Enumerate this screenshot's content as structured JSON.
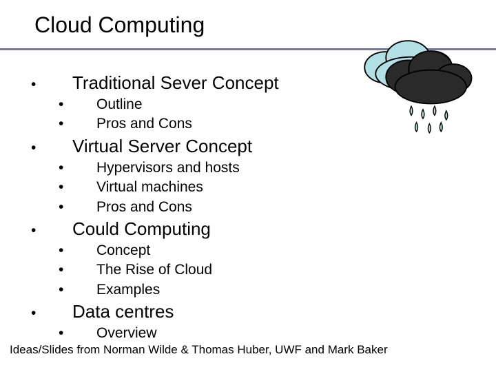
{
  "title": "Cloud Computing",
  "colors": {
    "rule": "#777799",
    "cloud_light": "#b3e0e5",
    "cloud_dark": "#2a2a2a",
    "cloud_outline": "#000000",
    "text": "#000000",
    "bg": "#ffffff"
  },
  "typography": {
    "title_fontsize": 32,
    "lvl1_fontsize": 26,
    "lvl2_fontsize": 21,
    "footer_fontsize": 17,
    "font_family": "Arial"
  },
  "outline": [
    {
      "level": 1,
      "text": "Traditional Sever Concept"
    },
    {
      "level": 2,
      "text": "Outline"
    },
    {
      "level": 2,
      "text": "Pros and Cons"
    },
    {
      "level": 1,
      "text": "Virtual Server Concept"
    },
    {
      "level": 2,
      "text": "Hypervisors and hosts"
    },
    {
      "level": 2,
      "text": "Virtual machines"
    },
    {
      "level": 2,
      "text": "Pros and Cons"
    },
    {
      "level": 1,
      "text": "Could Computing"
    },
    {
      "level": 2,
      "text": "Concept"
    },
    {
      "level": 2,
      "text": "The Rise of Cloud"
    },
    {
      "level": 2,
      "text": "Examples"
    },
    {
      "level": 1,
      "text": "Data centres"
    },
    {
      "level": 2,
      "text": "Overview"
    }
  ],
  "footer": "Ideas/Slides from Norman Wilde & Thomas Huber, UWF and Mark Baker",
  "bullet_glyph": "•"
}
